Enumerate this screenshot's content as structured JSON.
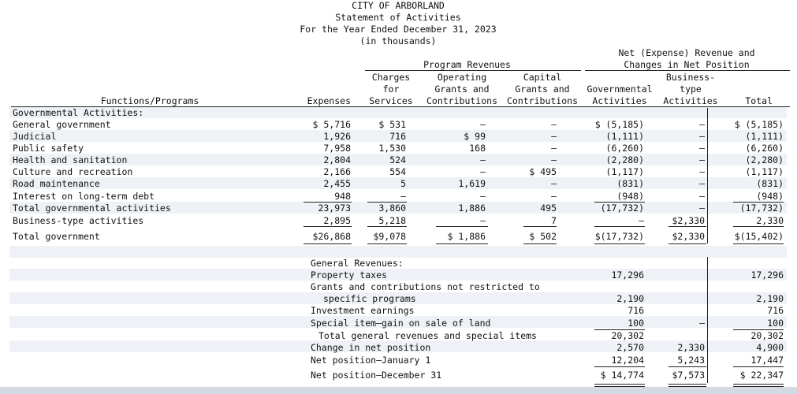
{
  "header": {
    "entity": "CITY OF ARBORLAND",
    "statement": "Statement of Activities",
    "period": "For the Year Ended December 31, 2023",
    "units": "(in thousands)"
  },
  "column_headers": {
    "functions_programs": "Functions/Programs",
    "expenses": "Expenses",
    "program_revenues": "Program Revenues",
    "charges_line1": "Charges",
    "charges_line2": "for",
    "charges_line3": "Services",
    "operating_line1": "Operating",
    "operating_line2": "Grants and",
    "operating_line3": "Contributions",
    "capital_line1": "Capital",
    "capital_line2": "Grants and",
    "capital_line3": "Contributions",
    "net_line1": "Net (Expense) Revenue and",
    "net_line2": "Changes in Net Position",
    "governmental_line1": "Governmental",
    "governmental_line2": "Activities",
    "business_line1": "Business-",
    "business_line2": "type",
    "business_line3": "Activities",
    "total": "Total"
  },
  "section_governmental": "Governmental Activities:",
  "rows": [
    {
      "label": "General government",
      "expenses": "$ 5,716",
      "charges": "$  531",
      "operating": "—",
      "capital": "—",
      "gov": "$ (5,185)",
      "biz": "—",
      "total": "$ (5,185)"
    },
    {
      "label": "Judicial",
      "expenses": "1,926",
      "charges": "716",
      "operating": "$    99",
      "capital": "—",
      "gov": "(1,111)",
      "biz": "—",
      "total": "(1,111)"
    },
    {
      "label": "Public safety",
      "expenses": "7,958",
      "charges": "1,530",
      "operating": "168",
      "capital": "—",
      "gov": "(6,260)",
      "biz": "—",
      "total": "(6,260)"
    },
    {
      "label": "Health and sanitation",
      "expenses": "2,804",
      "charges": "524",
      "operating": "—",
      "capital": "—",
      "gov": "(2,280)",
      "biz": "—",
      "total": "(2,280)"
    },
    {
      "label": "Culture and recreation",
      "expenses": "2,166",
      "charges": "554",
      "operating": "—",
      "capital": "$ 495",
      "gov": "(1,117)",
      "biz": "—",
      "total": "(1,117)"
    },
    {
      "label": "Road maintenance",
      "expenses": "2,455",
      "charges": "5",
      "operating": "1,619",
      "capital": "—",
      "gov": "(831)",
      "biz": "—",
      "total": "(831)"
    },
    {
      "label": "Interest on long-term debt",
      "expenses": "948",
      "charges": "—",
      "operating": "—",
      "capital": "—",
      "gov": "(948)",
      "biz": "—",
      "total": "(948)"
    },
    {
      "label": "Total governmental activities",
      "expenses": "23,973",
      "charges": "3,860",
      "operating": "1,886",
      "capital": "495",
      "gov": "(17,732)",
      "biz": "—",
      "total": "(17,732)"
    },
    {
      "label": "Business-type activities",
      "expenses": "2,895",
      "charges": "5,218",
      "operating": "—",
      "capital": "7",
      "gov": "—",
      "biz": "$2,330",
      "total": "2,330"
    },
    {
      "label": "Total government",
      "expenses": "$26,868",
      "charges": "$9,078",
      "operating": "$ 1,886",
      "capital": "$ 502",
      "gov": "$(17,732)",
      "biz": "$2,330",
      "total": "$(15,402)"
    }
  ],
  "general_revenues_title": "General Revenues:",
  "general_rows": [
    {
      "label": "Property taxes",
      "gov": "17,296",
      "biz": "",
      "total": "17,296"
    },
    {
      "label": "Grants and contributions not restricted to",
      "gov": "",
      "biz": "",
      "total": ""
    },
    {
      "label": "specific programs",
      "gov": "2,190",
      "biz": "",
      "total": "2,190"
    },
    {
      "label": "Investment earnings",
      "gov": "716",
      "biz": "",
      "total": "716"
    },
    {
      "label": "Special item—gain on sale of land",
      "gov": "100",
      "biz": "—",
      "total": "100"
    },
    {
      "label": "Total general revenues and special items",
      "gov": "20,302",
      "biz": "",
      "total": "20,302"
    },
    {
      "label": "Change in net position",
      "gov": "2,570",
      "biz": "2,330",
      "total": "4,900"
    },
    {
      "label": "Net position—January 1",
      "gov": "12,204",
      "biz": "5,243",
      "total": "17,447"
    },
    {
      "label": "Net position—December 31",
      "gov": "$ 14,774",
      "biz": "$7,573",
      "total": "$ 22,347"
    }
  ]
}
